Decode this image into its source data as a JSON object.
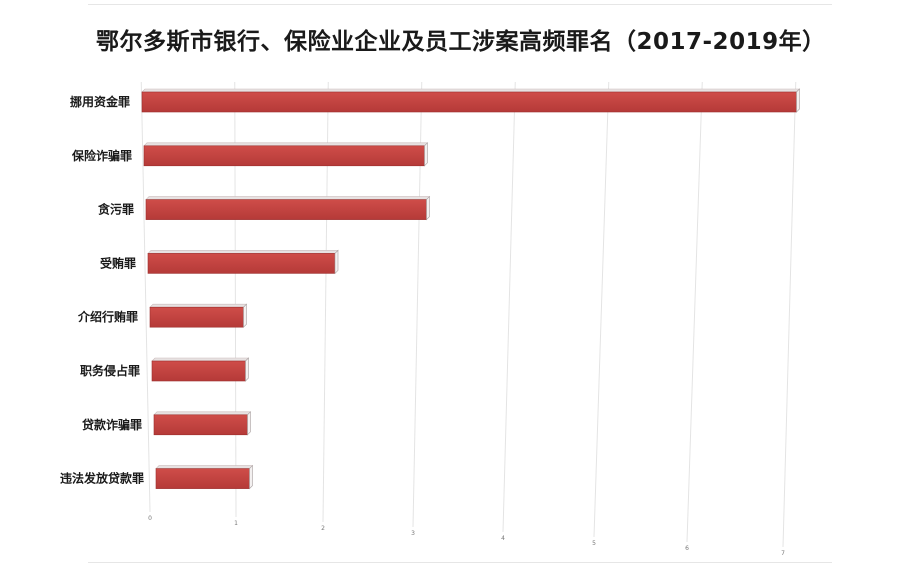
{
  "chart_data": {
    "type": "bar",
    "orientation": "horizontal",
    "title": "鄂尔多斯市银行、保险业企业及员工涉案高频罪名（2017-2019年）",
    "xlabel": "",
    "ylabel": "",
    "categories": [
      "挪用资金罪",
      "保险诈骗罪",
      "贪污罪",
      "受贿罪",
      "介绍行贿罪",
      "职务侵占罪",
      "贷款诈骗罪",
      "违法发放贷款罪"
    ],
    "values": [
      7,
      3,
      3,
      2,
      1,
      1,
      1,
      1
    ],
    "xlim": [
      0,
      7
    ],
    "ticks": [
      "0",
      "1",
      "2",
      "3",
      "4",
      "5",
      "6",
      "7"
    ],
    "grid": true,
    "bar_color": "#c0413f",
    "legend": "none"
  }
}
